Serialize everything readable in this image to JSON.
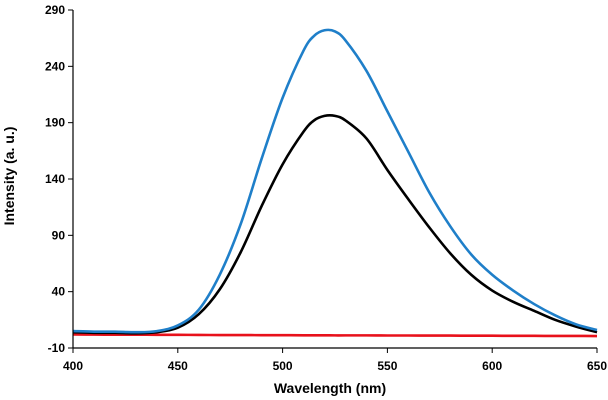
{
  "chart_data": {
    "type": "line",
    "title": "",
    "xlabel": "Wavelength (nm)",
    "ylabel": "Intensity (a. u.)",
    "xlim": [
      400,
      650
    ],
    "ylim": [
      -10,
      290
    ],
    "xticks": [
      400,
      450,
      500,
      550,
      600,
      650
    ],
    "yticks": [
      -10,
      40,
      90,
      140,
      190,
      240,
      290
    ],
    "x": [
      400,
      410,
      420,
      430,
      440,
      450,
      460,
      470,
      480,
      490,
      500,
      510,
      515,
      520,
      525,
      530,
      540,
      550,
      560,
      570,
      580,
      590,
      600,
      610,
      620,
      630,
      640,
      650
    ],
    "series": [
      {
        "name": "blue",
        "color": "#1f7fc9",
        "values": [
          5,
          4.5,
          4.5,
          4,
          5,
          10,
          24,
          55,
          100,
          158,
          212,
          254,
          267,
          272,
          271,
          263,
          236,
          200,
          164,
          128,
          98,
          73,
          55,
          41,
          29,
          19,
          11,
          6
        ]
      },
      {
        "name": "black",
        "color": "#000000",
        "values": [
          4,
          3.5,
          3.5,
          3,
          4,
          8,
          20,
          42,
          75,
          116,
          153,
          182,
          192,
          196,
          196,
          192,
          176,
          148,
          122,
          97,
          74,
          55,
          41,
          31,
          23,
          15,
          9,
          4
        ]
      },
      {
        "name": "red",
        "color": "#e8111b",
        "values": [
          2,
          1.9,
          1.8,
          1.8,
          1.7,
          1.7,
          1.6,
          1.5,
          1.5,
          1.4,
          1.4,
          1.3,
          1.3,
          1.3,
          1.2,
          1.2,
          1.2,
          1.1,
          1.1,
          1.0,
          1.0,
          0.9,
          0.9,
          0.8,
          0.8,
          0.7,
          0.7,
          0.6
        ]
      }
    ]
  }
}
